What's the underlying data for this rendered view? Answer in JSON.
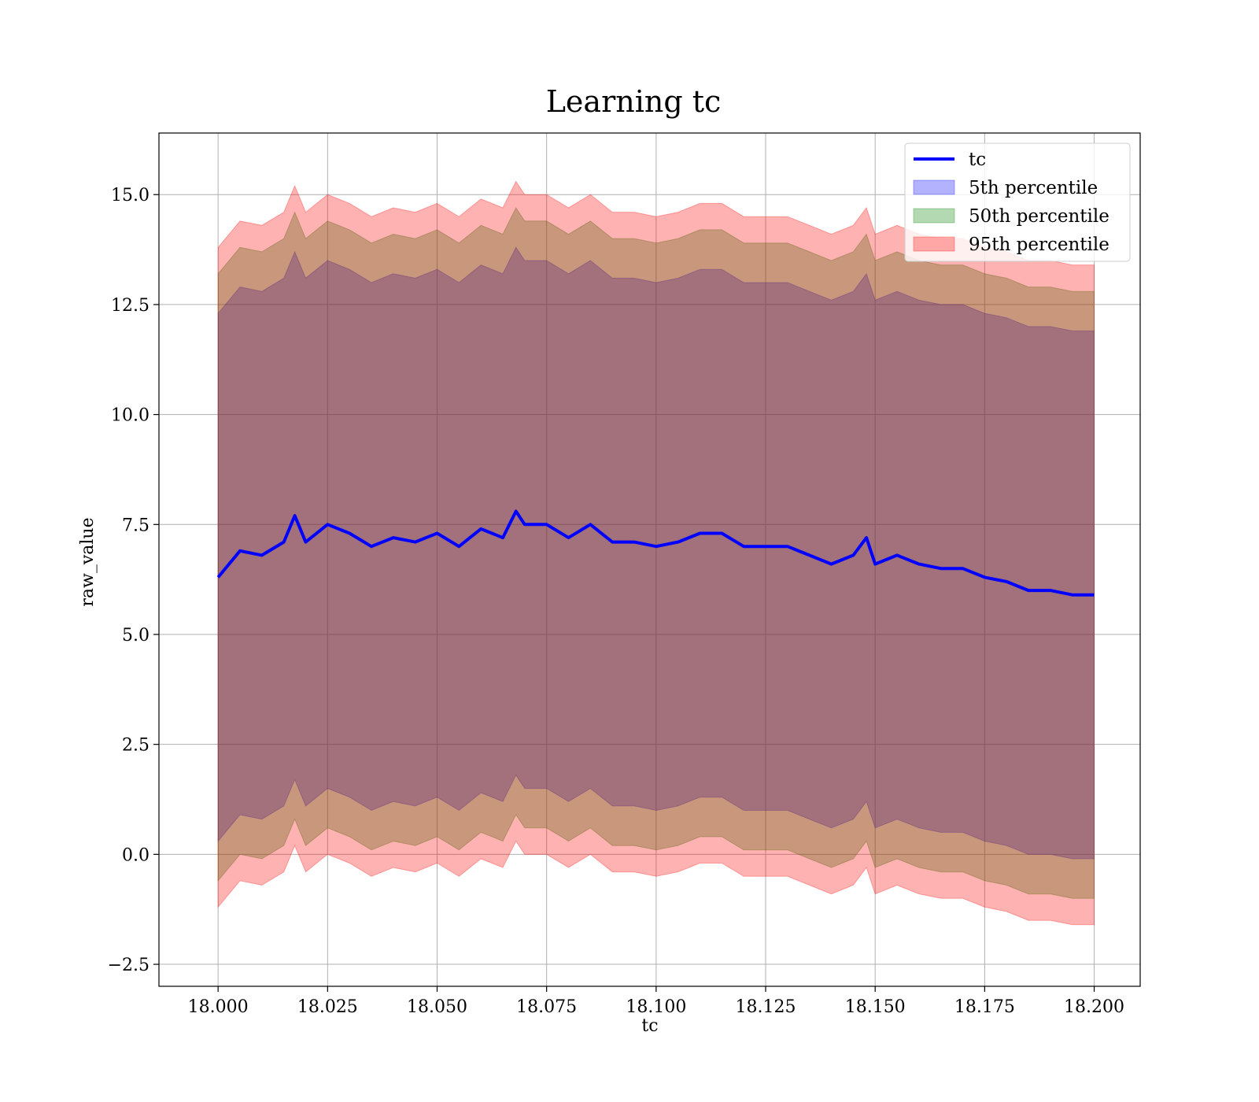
{
  "chart_data": {
    "type": "area",
    "title": "Learning tc",
    "xlabel": "tc",
    "ylabel": "raw_value",
    "xlim": [
      17.9865,
      18.2105
    ],
    "ylim": [
      -3.0,
      16.4
    ],
    "xticks": [
      18.0,
      18.025,
      18.05,
      18.075,
      18.1,
      18.125,
      18.15,
      18.175,
      18.2
    ],
    "xtick_labels": [
      "18.000",
      "18.025",
      "18.050",
      "18.075",
      "18.100",
      "18.125",
      "18.150",
      "18.175",
      "18.200"
    ],
    "yticks": [
      -2.5,
      0.0,
      2.5,
      5.0,
      7.5,
      10.0,
      12.5,
      15.0
    ],
    "ytick_labels": [
      "−2.5",
      "0.0",
      "2.5",
      "5.0",
      "7.5",
      "10.0",
      "12.5",
      "15.0"
    ],
    "grid": true,
    "legend_position": "top-right",
    "x": [
      18.0,
      18.005,
      18.01,
      18.015,
      18.0175,
      18.02,
      18.025,
      18.03,
      18.035,
      18.04,
      18.045,
      18.05,
      18.055,
      18.06,
      18.065,
      18.068,
      18.07,
      18.075,
      18.08,
      18.085,
      18.09,
      18.095,
      18.1,
      18.105,
      18.11,
      18.115,
      18.12,
      18.125,
      18.13,
      18.135,
      18.14,
      18.145,
      18.148,
      18.15,
      18.155,
      18.16,
      18.165,
      18.17,
      18.175,
      18.18,
      18.185,
      18.19,
      18.195,
      18.2
    ],
    "series": [
      {
        "name": "tc",
        "kind": "line",
        "color": "#0000ff",
        "values": [
          6.3,
          6.9,
          6.8,
          7.1,
          7.7,
          7.1,
          7.5,
          7.3,
          7.0,
          7.2,
          7.1,
          7.3,
          7.0,
          7.4,
          7.2,
          7.8,
          7.5,
          7.5,
          7.2,
          7.5,
          7.1,
          7.1,
          7.0,
          7.1,
          7.3,
          7.3,
          7.0,
          7.0,
          7.0,
          6.8,
          6.6,
          6.8,
          7.2,
          6.6,
          6.8,
          6.6,
          6.5,
          6.5,
          6.3,
          6.2,
          6.0,
          6.0,
          5.9,
          5.9
        ]
      },
      {
        "name": "5th percentile",
        "kind": "band",
        "color": "#0000ff",
        "lower": [
          0.3,
          0.9,
          0.8,
          1.1,
          1.7,
          1.1,
          1.5,
          1.3,
          1.0,
          1.2,
          1.1,
          1.3,
          1.0,
          1.4,
          1.2,
          1.8,
          1.5,
          1.5,
          1.2,
          1.5,
          1.1,
          1.1,
          1.0,
          1.1,
          1.3,
          1.3,
          1.0,
          1.0,
          1.0,
          0.8,
          0.6,
          0.8,
          1.2,
          0.6,
          0.8,
          0.6,
          0.5,
          0.5,
          0.3,
          0.2,
          0.0,
          0.0,
          -0.1,
          -0.1
        ],
        "upper": [
          12.3,
          12.9,
          12.8,
          13.1,
          13.7,
          13.1,
          13.5,
          13.3,
          13.0,
          13.2,
          13.1,
          13.3,
          13.0,
          13.4,
          13.2,
          13.8,
          13.5,
          13.5,
          13.2,
          13.5,
          13.1,
          13.1,
          13.0,
          13.1,
          13.3,
          13.3,
          13.0,
          13.0,
          13.0,
          12.8,
          12.6,
          12.8,
          13.2,
          12.6,
          12.8,
          12.6,
          12.5,
          12.5,
          12.3,
          12.2,
          12.0,
          12.0,
          11.9,
          11.9
        ]
      },
      {
        "name": "50th percentile",
        "kind": "band",
        "color": "#008000",
        "lower": [
          -0.6,
          0.0,
          -0.1,
          0.2,
          0.8,
          0.2,
          0.6,
          0.4,
          0.1,
          0.3,
          0.2,
          0.4,
          0.1,
          0.5,
          0.3,
          0.9,
          0.6,
          0.6,
          0.3,
          0.6,
          0.2,
          0.2,
          0.1,
          0.2,
          0.4,
          0.4,
          0.1,
          0.1,
          0.1,
          -0.1,
          -0.3,
          -0.1,
          0.3,
          -0.3,
          -0.1,
          -0.3,
          -0.4,
          -0.4,
          -0.6,
          -0.7,
          -0.9,
          -0.9,
          -1.0,
          -1.0
        ],
        "upper": [
          13.2,
          13.8,
          13.7,
          14.0,
          14.6,
          14.0,
          14.4,
          14.2,
          13.9,
          14.1,
          14.0,
          14.2,
          13.9,
          14.3,
          14.1,
          14.7,
          14.4,
          14.4,
          14.1,
          14.4,
          14.0,
          14.0,
          13.9,
          14.0,
          14.2,
          14.2,
          13.9,
          13.9,
          13.9,
          13.7,
          13.5,
          13.7,
          14.1,
          13.5,
          13.7,
          13.5,
          13.4,
          13.4,
          13.2,
          13.1,
          12.9,
          12.9,
          12.8,
          12.8
        ]
      },
      {
        "name": "95th percentile",
        "kind": "band",
        "color": "#ff0000",
        "lower": [
          -1.2,
          -0.6,
          -0.7,
          -0.4,
          0.2,
          -0.4,
          0.0,
          -0.2,
          -0.5,
          -0.3,
          -0.4,
          -0.2,
          -0.5,
          -0.1,
          -0.3,
          0.3,
          0.0,
          0.0,
          -0.3,
          0.0,
          -0.4,
          -0.4,
          -0.5,
          -0.4,
          -0.2,
          -0.2,
          -0.5,
          -0.5,
          -0.5,
          -0.7,
          -0.9,
          -0.7,
          -0.3,
          -0.9,
          -0.7,
          -0.9,
          -1.0,
          -1.0,
          -1.2,
          -1.3,
          -1.5,
          -1.5,
          -1.6,
          -1.6
        ],
        "upper": [
          13.8,
          14.4,
          14.3,
          14.6,
          15.2,
          14.6,
          15.0,
          14.8,
          14.5,
          14.7,
          14.6,
          14.8,
          14.5,
          14.9,
          14.7,
          15.3,
          15.0,
          15.0,
          14.7,
          15.0,
          14.6,
          14.6,
          14.5,
          14.6,
          14.8,
          14.8,
          14.5,
          14.5,
          14.5,
          14.3,
          14.1,
          14.3,
          14.7,
          14.1,
          14.3,
          14.1,
          14.0,
          14.0,
          13.8,
          13.7,
          13.5,
          13.5,
          13.4,
          13.4
        ]
      }
    ]
  }
}
